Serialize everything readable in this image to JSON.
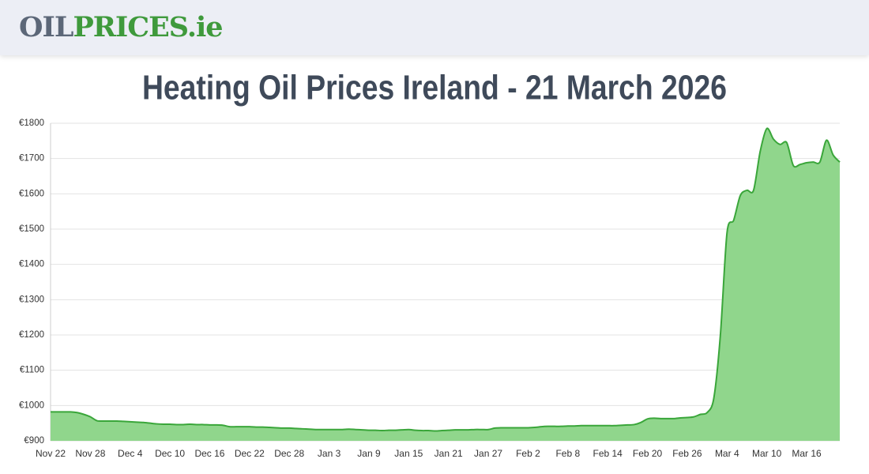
{
  "header": {
    "logo": [
      "OIL",
      "PRICES.ie"
    ]
  },
  "chart_data": {
    "type": "area",
    "title": "Heating Oil Prices Ireland - 21 March 2026",
    "color": "#3aa63a",
    "fill": "#90d68c",
    "grid": true,
    "categories": [
      "Nov 22",
      null,
      null,
      null,
      null,
      null,
      "Nov 28",
      null,
      null,
      null,
      null,
      null,
      "Dec 4",
      null,
      null,
      null,
      null,
      null,
      "Dec 10",
      null,
      null,
      null,
      null,
      null,
      "Dec 16",
      null,
      null,
      null,
      null,
      null,
      "Dec 22",
      null,
      null,
      null,
      null,
      null,
      "Dec 28",
      null,
      null,
      null,
      null,
      null,
      "Jan 3",
      null,
      null,
      null,
      null,
      null,
      "Jan 9",
      null,
      null,
      null,
      null,
      null,
      "Jan 15",
      null,
      null,
      null,
      null,
      null,
      "Jan 21",
      null,
      null,
      null,
      null,
      null,
      "Jan 27",
      null,
      null,
      null,
      null,
      null,
      "Feb 2",
      null,
      null,
      null,
      null,
      null,
      "Feb 8",
      null,
      null,
      null,
      null,
      null,
      "Feb 14",
      null,
      null,
      null,
      null,
      null,
      "Feb 20",
      null,
      null,
      null,
      null,
      null,
      "Feb 26",
      null,
      null,
      null,
      null,
      null,
      "Mar 4",
      null,
      null,
      null,
      null,
      null,
      "Mar 10",
      null,
      null,
      null,
      null,
      null,
      "Mar 16",
      null,
      null,
      null,
      null,
      null
    ],
    "values": [
      982,
      982,
      982,
      982,
      980,
      975,
      968,
      957,
      956,
      956,
      956,
      955,
      954,
      953,
      952,
      950,
      948,
      947,
      947,
      946,
      946,
      947,
      946,
      946,
      945,
      945,
      944,
      940,
      940,
      940,
      940,
      939,
      939,
      938,
      937,
      936,
      936,
      935,
      934,
      933,
      932,
      932,
      932,
      932,
      932,
      933,
      932,
      931,
      930,
      930,
      929,
      930,
      930,
      931,
      932,
      930,
      929,
      929,
      928,
      929,
      930,
      931,
      931,
      931,
      932,
      932,
      932,
      936,
      937,
      937,
      937,
      937,
      937,
      938,
      940,
      941,
      941,
      941,
      942,
      942,
      943,
      943,
      943,
      943,
      943,
      943,
      944,
      945,
      946,
      952,
      962,
      964,
      963,
      963,
      963,
      965,
      966,
      968,
      975,
      980,
      1020,
      1200,
      1490,
      1525,
      1595,
      1610,
      1610,
      1720,
      1785,
      1755,
      1740,
      1745,
      1680,
      1683,
      1688,
      1690,
      1690,
      1752,
      1710,
      1690
    ],
    "ylim": [
      900,
      1800
    ],
    "yticks": [
      {
        "value": 900,
        "label": "€900"
      },
      {
        "value": 1000,
        "label": "€1000"
      },
      {
        "value": 1100,
        "label": "€1100"
      },
      {
        "value": 1200,
        "label": "€1200"
      },
      {
        "value": 1300,
        "label": "€1300"
      },
      {
        "value": 1400,
        "label": "€1400"
      },
      {
        "value": 1500,
        "label": "€1500"
      },
      {
        "value": 1600,
        "label": "€1600"
      },
      {
        "value": 1700,
        "label": "€1700"
      },
      {
        "value": 1800,
        "label": "€1800"
      }
    ]
  }
}
